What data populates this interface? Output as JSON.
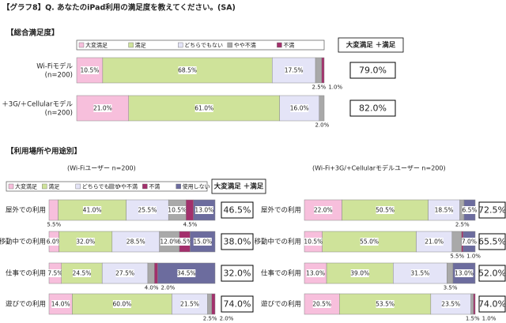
{
  "title": "【グラフ8】Q. あなたのiPad利用の満足度を教えてください。(SA)",
  "chart_data": [
    {
      "type": "bar",
      "orientation": "horizontal",
      "stacked": true,
      "section": "【総合満足度】",
      "categories": [
        "Wi-Fiモデル\n(n=200)",
        "＋3G/＋Cellularモデル\n(n=200)"
      ],
      "series": [
        {
          "name": "大変満足",
          "color": "#f7bfdc",
          "values": [
            10.5,
            21.0
          ],
          "value_labels": [
            "10.5%",
            "21.0%"
          ]
        },
        {
          "name": "満足",
          "color": "#cfe39a",
          "values": [
            68.5,
            61.0
          ],
          "value_labels": [
            "68.5%",
            "61.0%"
          ]
        },
        {
          "name": "どちらでもない",
          "color": "#e4e4f7",
          "values": [
            17.5,
            16.0
          ],
          "value_labels": [
            "17.5%",
            "16.0%"
          ]
        },
        {
          "name": "やや不満",
          "color": "#a9a9a9",
          "values": [
            2.5,
            2.0
          ],
          "value_labels": [
            "2.5%",
            "2.0%"
          ]
        },
        {
          "name": "不満",
          "color": "#a3306c",
          "values": [
            1.0,
            0
          ],
          "value_labels": [
            "1.0%",
            null
          ]
        }
      ],
      "totals": {
        "header": "大変満足 ＋満足",
        "values": [
          79.0,
          82.0
        ],
        "value_labels": [
          "79.0%",
          "82.0%"
        ]
      }
    },
    {
      "type": "bar",
      "orientation": "horizontal",
      "stacked": true,
      "section": "【利用場所や用途別】",
      "subtitle": "(Wi-Fiユーザー n=200)",
      "categories": [
        "屋外での利用",
        "移動中での利用",
        "仕事での利用",
        "遊びでの利用"
      ],
      "series": [
        {
          "name": "大変満足",
          "color": "#f7bfdc",
          "values": [
            5.5,
            6.0,
            7.5,
            14.0
          ],
          "value_labels": [
            "5.5%",
            "6.0%",
            "7.5%",
            "14.0%"
          ]
        },
        {
          "name": "満足",
          "color": "#cfe39a",
          "values": [
            41.0,
            32.0,
            24.5,
            60.0
          ],
          "value_labels": [
            "41.0%",
            "32.0%",
            "24.5%",
            "60.0%"
          ]
        },
        {
          "name": "どちらでもない",
          "color": "#e4e4f7",
          "values": [
            25.5,
            28.5,
            27.5,
            21.5
          ],
          "value_labels": [
            "25.5%",
            "28.5%",
            "27.5%",
            "21.5%"
          ]
        },
        {
          "name": "やや不満",
          "color": "#a9a9a9",
          "values": [
            10.5,
            12.0,
            4.0,
            2.5
          ],
          "value_labels": [
            "10.5%",
            "12.0%",
            "4.0%",
            "2.5%"
          ]
        },
        {
          "name": "不満",
          "color": "#a3306c",
          "values": [
            4.5,
            6.5,
            2.0,
            2.0
          ],
          "value_labels": [
            "4.5%",
            "6.5%",
            "2.0%",
            "2.0%"
          ]
        },
        {
          "name": "使用しない",
          "color": "#6c6c9e",
          "values": [
            13.0,
            15.0,
            34.5,
            0
          ],
          "value_labels": [
            "13.0%",
            "15.0%",
            "34.5%",
            null
          ]
        }
      ],
      "totals": {
        "header": "大変満足 ＋満足",
        "values": [
          46.5,
          38.0,
          32.0,
          74.0
        ],
        "value_labels": [
          "46.5%",
          "38.0%",
          "32.0%",
          "74.0%"
        ]
      }
    },
    {
      "type": "bar",
      "orientation": "horizontal",
      "stacked": true,
      "subtitle": "(Wi-Fi+3G/+Cellularモデルユーザー n=200)",
      "categories": [
        "屋外での利用",
        "移動中での利用",
        "仕事での利用",
        "遊びでの利用"
      ],
      "series": [
        {
          "color": "#f7bfdc",
          "values": [
            22.0,
            10.5,
            13.0,
            20.5
          ],
          "value_labels": [
            "22.0%",
            "10.5%",
            "13.0%",
            "20.5%"
          ]
        },
        {
          "color": "#cfe39a",
          "values": [
            50.5,
            55.0,
            39.0,
            53.5
          ],
          "value_labels": [
            "50.5%",
            "55.0%",
            "39.0%",
            "53.5%"
          ]
        },
        {
          "color": "#e4e4f7",
          "values": [
            18.5,
            21.0,
            31.5,
            23.5
          ],
          "value_labels": [
            "18.5%",
            "21.0%",
            "31.5%",
            "23.5%"
          ]
        },
        {
          "color": "#a9a9a9",
          "values": [
            2.5,
            5.5,
            3.5,
            1.5
          ],
          "value_labels": [
            "2.5%",
            "5.5%",
            "3.5%",
            "1.5%"
          ]
        },
        {
          "color": "#a3306c",
          "values": [
            0,
            1.0,
            0,
            1.0
          ],
          "value_labels": [
            null,
            "1.0%",
            null,
            "1.0%"
          ]
        },
        {
          "color": "#6c6c9e",
          "values": [
            6.5,
            7.0,
            13.0,
            0
          ],
          "value_labels": [
            "6.5%",
            "7.0%",
            "13.0%",
            null
          ]
        }
      ],
      "totals": {
        "values": [
          72.5,
          65.5,
          52.0,
          74.0
        ],
        "value_labels": [
          "72.5%",
          "65.5%",
          "52.0%",
          "74.0%"
        ]
      }
    }
  ]
}
